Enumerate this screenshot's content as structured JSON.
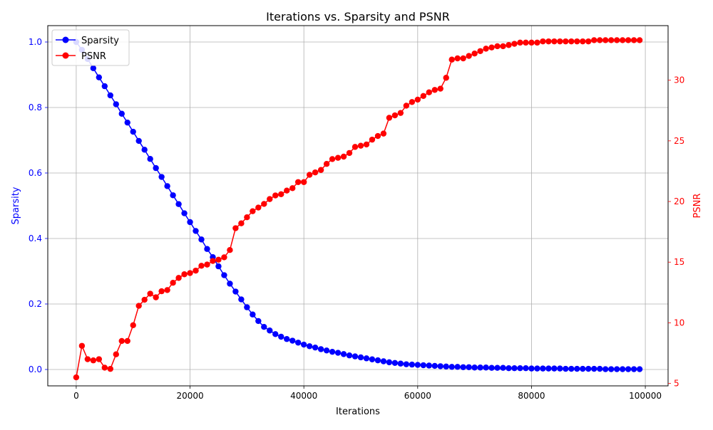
{
  "chart_data": {
    "type": "line",
    "title": "Iterations vs. Sparsity and PSNR",
    "xlabel": "Iterations",
    "ylabel_left": "Sparsity",
    "ylabel_right": "PSNR",
    "xlim": [
      -5000,
      104000
    ],
    "ylim_left": [
      -0.05,
      1.05
    ],
    "ylim_right": [
      4.8,
      34.5
    ],
    "xticks": [
      0,
      20000,
      40000,
      60000,
      80000,
      100000
    ],
    "xtick_labels": [
      "0",
      "20000",
      "40000",
      "60000",
      "80000",
      "100000"
    ],
    "yticks_left": [
      0.0,
      0.2,
      0.4,
      0.6,
      0.8,
      1.0
    ],
    "ytick_labels_left": [
      "0.0",
      "0.2",
      "0.4",
      "0.6",
      "0.8",
      "1.0"
    ],
    "yticks_right": [
      5,
      10,
      15,
      20,
      25,
      30
    ],
    "ytick_labels_right": [
      "5",
      "10",
      "15",
      "20",
      "25",
      "30"
    ],
    "grid": true,
    "legend_position": "upper-left",
    "x": [
      0,
      1000,
      2000,
      3000,
      4000,
      5000,
      6000,
      7000,
      8000,
      9000,
      10000,
      11000,
      12000,
      13000,
      14000,
      15000,
      16000,
      17000,
      18000,
      19000,
      20000,
      21000,
      22000,
      23000,
      24000,
      25000,
      26000,
      27000,
      28000,
      29000,
      30000,
      31000,
      32000,
      33000,
      34000,
      35000,
      36000,
      37000,
      38000,
      39000,
      40000,
      41000,
      42000,
      43000,
      44000,
      45000,
      46000,
      47000,
      48000,
      49000,
      50000,
      51000,
      52000,
      53000,
      54000,
      55000,
      56000,
      57000,
      58000,
      59000,
      60000,
      61000,
      62000,
      63000,
      64000,
      65000,
      66000,
      67000,
      68000,
      69000,
      70000,
      71000,
      72000,
      73000,
      74000,
      75000,
      76000,
      77000,
      78000,
      79000,
      80000,
      81000,
      82000,
      83000,
      84000,
      85000,
      86000,
      87000,
      88000,
      89000,
      90000,
      91000,
      92000,
      93000,
      94000,
      95000,
      96000,
      97000,
      98000,
      99000
    ],
    "series": [
      {
        "name": "Sparsity",
        "axis": "left",
        "color": "#0000ff",
        "values": [
          1.0,
          0.976,
          0.948,
          0.92,
          0.892,
          0.865,
          0.837,
          0.81,
          0.781,
          0.754,
          0.726,
          0.698,
          0.671,
          0.643,
          0.615,
          0.588,
          0.56,
          0.532,
          0.505,
          0.477,
          0.45,
          0.423,
          0.397,
          0.368,
          0.343,
          0.315,
          0.288,
          0.262,
          0.238,
          0.214,
          0.19,
          0.168,
          0.148,
          0.13,
          0.119,
          0.108,
          0.1,
          0.093,
          0.088,
          0.082,
          0.076,
          0.071,
          0.067,
          0.062,
          0.058,
          0.054,
          0.051,
          0.047,
          0.043,
          0.04,
          0.037,
          0.034,
          0.031,
          0.028,
          0.025,
          0.022,
          0.02,
          0.018,
          0.016,
          0.015,
          0.014,
          0.013,
          0.012,
          0.011,
          0.01,
          0.009,
          0.008,
          0.008,
          0.007,
          0.007,
          0.006,
          0.006,
          0.006,
          0.005,
          0.005,
          0.005,
          0.004,
          0.004,
          0.004,
          0.004,
          0.003,
          0.003,
          0.003,
          0.003,
          0.003,
          0.003,
          0.002,
          0.002,
          0.002,
          0.002,
          0.002,
          0.002,
          0.002,
          0.001,
          0.001,
          0.001,
          0.001,
          0.001,
          0.001,
          0.001
        ]
      },
      {
        "name": "PSNR",
        "axis": "right",
        "color": "#ff0000",
        "values": [
          5.5,
          8.1,
          7.0,
          6.9,
          7.0,
          6.3,
          6.2,
          7.4,
          8.5,
          8.5,
          9.8,
          11.4,
          11.9,
          12.4,
          12.1,
          12.6,
          12.7,
          13.3,
          13.7,
          14.0,
          14.1,
          14.3,
          14.7,
          14.8,
          15.1,
          15.2,
          15.4,
          16.0,
          17.8,
          18.2,
          18.7,
          19.2,
          19.5,
          19.8,
          20.2,
          20.5,
          20.6,
          20.9,
          21.1,
          21.6,
          21.6,
          22.2,
          22.4,
          22.6,
          23.1,
          23.5,
          23.6,
          23.7,
          24.0,
          24.5,
          24.6,
          24.7,
          25.1,
          25.4,
          25.6,
          26.9,
          27.1,
          27.3,
          27.9,
          28.2,
          28.4,
          28.7,
          29.0,
          29.2,
          29.3,
          30.2,
          31.7,
          31.8,
          31.8,
          32.0,
          32.2,
          32.4,
          32.6,
          32.7,
          32.8,
          32.8,
          32.9,
          33.0,
          33.1,
          33.1,
          33.1,
          33.1,
          33.2,
          33.2,
          33.2,
          33.2,
          33.2,
          33.2,
          33.2,
          33.2,
          33.2,
          33.3,
          33.3,
          33.3,
          33.3,
          33.3,
          33.3,
          33.3,
          33.3,
          33.3
        ]
      }
    ]
  }
}
